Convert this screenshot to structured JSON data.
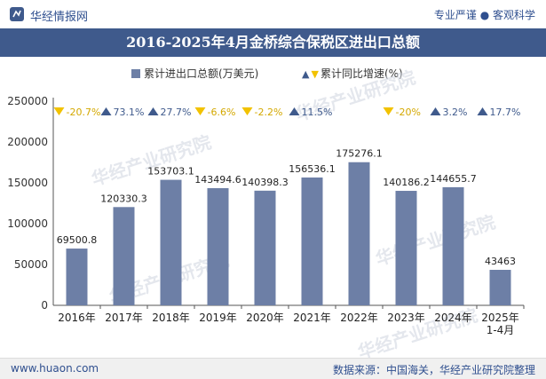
{
  "header": {
    "brand": "华经情报网",
    "tagline": "专业严谨 ● 客观科学"
  },
  "title": "2016-2025年4月金桥综合保税区进出口总额",
  "legend": {
    "bar_label": "累计进出口总额(万美元)",
    "growth_label": "累计同比增速(%)"
  },
  "footer": {
    "url": "www.huaon.com",
    "source": "数据来源：中国海关，华经产业研究院整理"
  },
  "watermark": "华经产业研究院",
  "colors": {
    "bar": "#6d7fa6",
    "title_bg": "#3f5a8c",
    "up": "#3f5a8c",
    "down": "#f2c200"
  },
  "chart_data": {
    "type": "bar",
    "categories": [
      "2016年",
      "2017年",
      "2018年",
      "2019年",
      "2020年",
      "2021年",
      "2022年",
      "2023年",
      "2024年",
      "2025年\n1-4月"
    ],
    "series": [
      {
        "name": "累计进出口总额(万美元)",
        "values": [
          69500.8,
          120330.3,
          153703.1,
          143494.6,
          140398.3,
          156536.1,
          175276.1,
          140186.2,
          144655.7,
          43463
        ],
        "labels": [
          "69500.8",
          "120330.3",
          "153703.1",
          "143494.6",
          "140398.3",
          "156536.1",
          "175276.1",
          "140186.2",
          "144655.7",
          "43463"
        ]
      },
      {
        "name": "累计同比增速(%)",
        "values": [
          -20.7,
          73.1,
          27.7,
          -6.6,
          -2.2,
          11.5,
          null,
          -20,
          3.2,
          17.7
        ],
        "labels": [
          "-20.7%",
          "73.1%",
          "27.7%",
          "-6.6%",
          "-2.2%",
          "11.5%",
          "",
          "-20%",
          "3.2%",
          "17.7%"
        ]
      }
    ],
    "ylim": [
      0,
      250000
    ],
    "yticks": [
      "0",
      "50000",
      "100000",
      "150000",
      "200000",
      "250000"
    ],
    "ytick_values": [
      0,
      50000,
      100000,
      150000,
      200000,
      250000
    ],
    "grid": false,
    "legend_position": "top-center"
  }
}
